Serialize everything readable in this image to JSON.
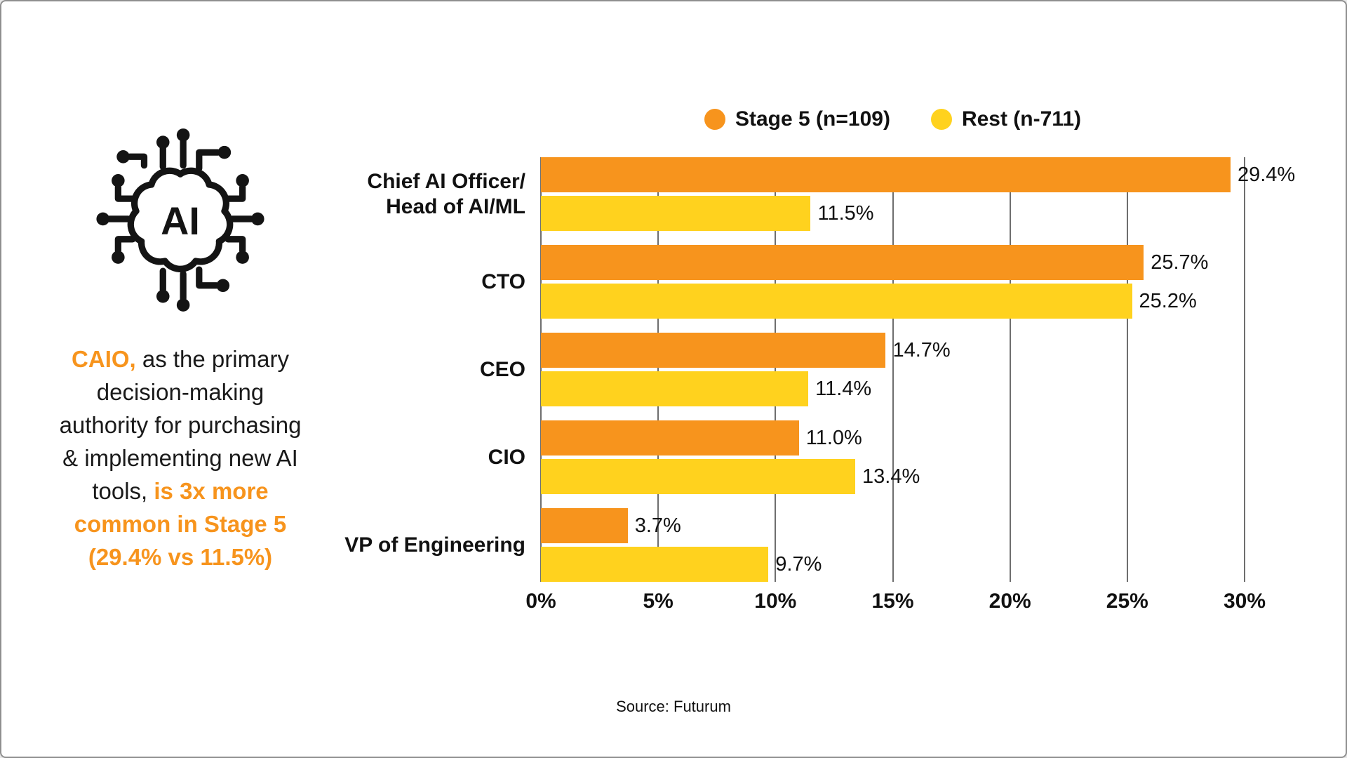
{
  "colors": {
    "accent_orange": "#F7941D",
    "accent_yellow": "#FFD21E",
    "gridline": "#6e6e6e",
    "text": "#111111",
    "page_border": "#8f8f8f"
  },
  "callout": {
    "icon": "ai-brain-circuit",
    "icon_label": "AI",
    "lines": [
      [
        {
          "text": "CAIO,",
          "highlight": true
        },
        {
          "text": " as the primary",
          "highlight": false
        }
      ],
      [
        {
          "text": "decision-making",
          "highlight": false
        }
      ],
      [
        {
          "text": "authority for purchasing",
          "highlight": false
        }
      ],
      [
        {
          "text": "& implementing new AI",
          "highlight": false
        }
      ],
      [
        {
          "text": "tools, ",
          "highlight": false
        },
        {
          "text": "is 3x more",
          "highlight": true
        }
      ],
      [
        {
          "text": "common in Stage 5",
          "highlight": true
        }
      ],
      [
        {
          "text": "(29.4% vs 11.5%)",
          "highlight": true
        }
      ]
    ]
  },
  "chart_data": {
    "type": "bar",
    "orientation": "horizontal",
    "title": "",
    "categories": [
      "Chief AI Officer/\nHead of AI/ML",
      "CTO",
      "CEO",
      "CIO",
      "VP of Engineering"
    ],
    "series": [
      {
        "name": "Stage 5 (n=109)",
        "color": "#F7941D",
        "values": [
          29.4,
          25.7,
          14.7,
          11.0,
          3.7
        ],
        "value_labels": [
          "29.4%",
          "25.7%",
          "14.7%",
          "11.0%",
          "3.7%"
        ]
      },
      {
        "name": "Rest (n-711)",
        "color": "#FFD21E",
        "values": [
          11.5,
          25.2,
          11.4,
          13.4,
          9.7
        ],
        "value_labels": [
          "11.5%",
          "25.2%",
          "11.4%",
          "13.4%",
          "9.7%"
        ]
      }
    ],
    "xlim": [
      0,
      30
    ],
    "x_ticks": [
      "0%",
      "5%",
      "10%",
      "15%",
      "20%",
      "25%",
      "30%"
    ],
    "xlabel": "",
    "ylabel": "",
    "grid": true,
    "legend_position": "top"
  },
  "source": "Source: Futurum"
}
